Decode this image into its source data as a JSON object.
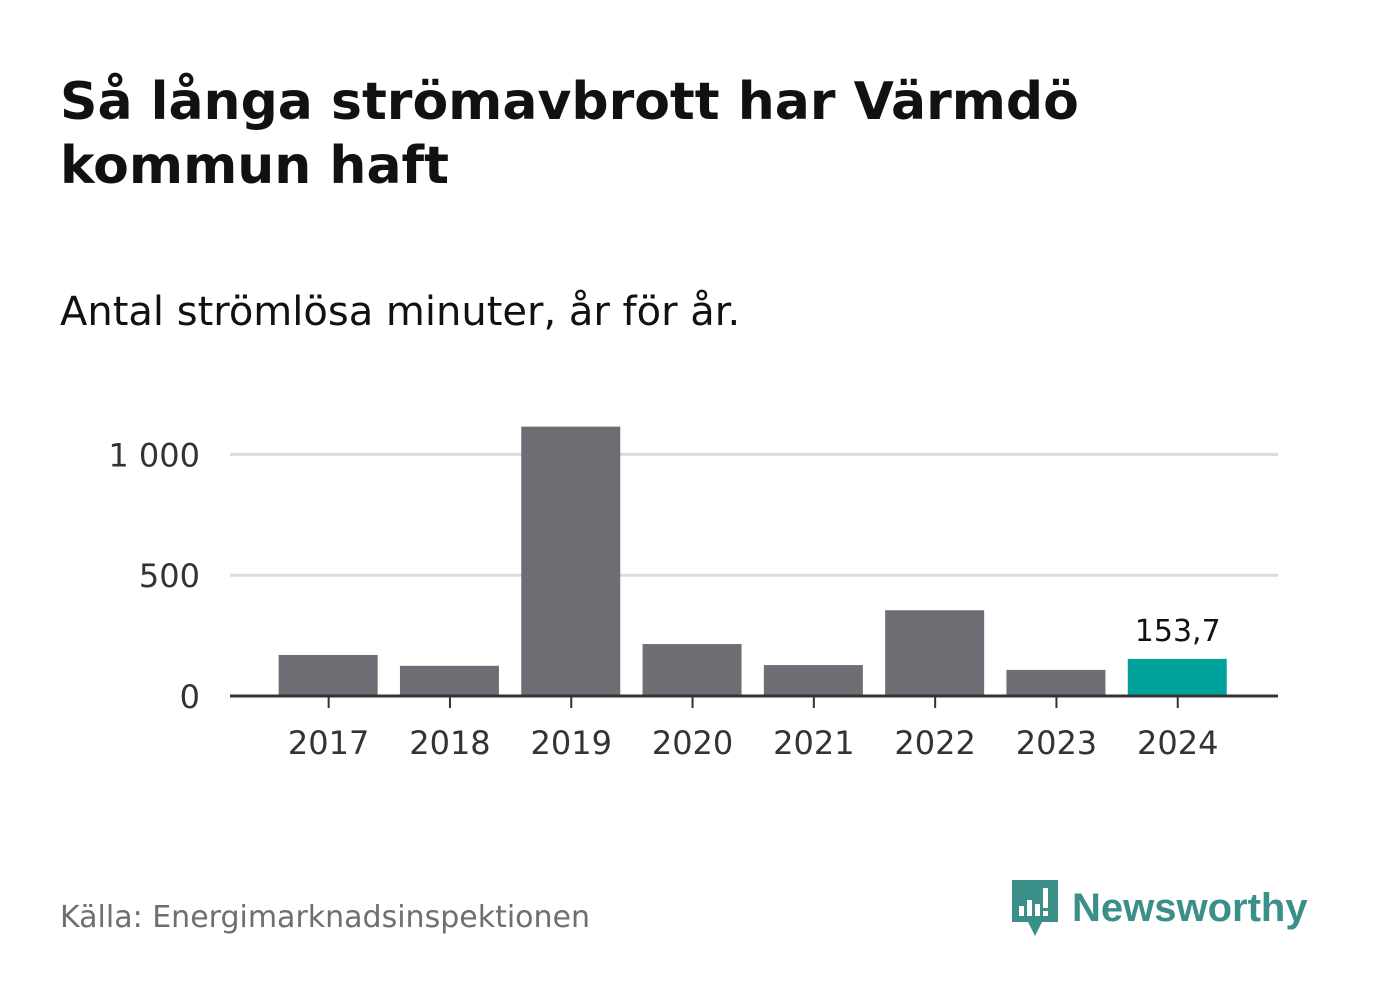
{
  "title": "Så långa strömavbrott har Värmdö kommun haft",
  "subtitle": "Antal strömlösa minuter, år för år.",
  "source": "Källa: Energimarknadsinspektionen",
  "brand": "Newsworthy",
  "colors": {
    "bar": "#6e6d73",
    "highlight": "#00a19a",
    "grid": "#dcdcdc",
    "axis": "#333333",
    "brand": "#3b8f89"
  },
  "chart_data": {
    "type": "bar",
    "categories": [
      "2017",
      "2018",
      "2019",
      "2020",
      "2021",
      "2022",
      "2023",
      "2024"
    ],
    "values": [
      170,
      125,
      1115,
      215,
      128,
      355,
      108,
      153.7
    ],
    "highlight_index": 7,
    "data_labels": [
      {
        "index": 7,
        "text": "153,7"
      }
    ],
    "yticks": [
      {
        "value": 0,
        "label": "0"
      },
      {
        "value": 500,
        "label": "500"
      },
      {
        "value": 1000,
        "label": "1 000"
      }
    ],
    "ylim": [
      0,
      1200
    ],
    "grid": true,
    "xlabel": "",
    "ylabel": ""
  }
}
